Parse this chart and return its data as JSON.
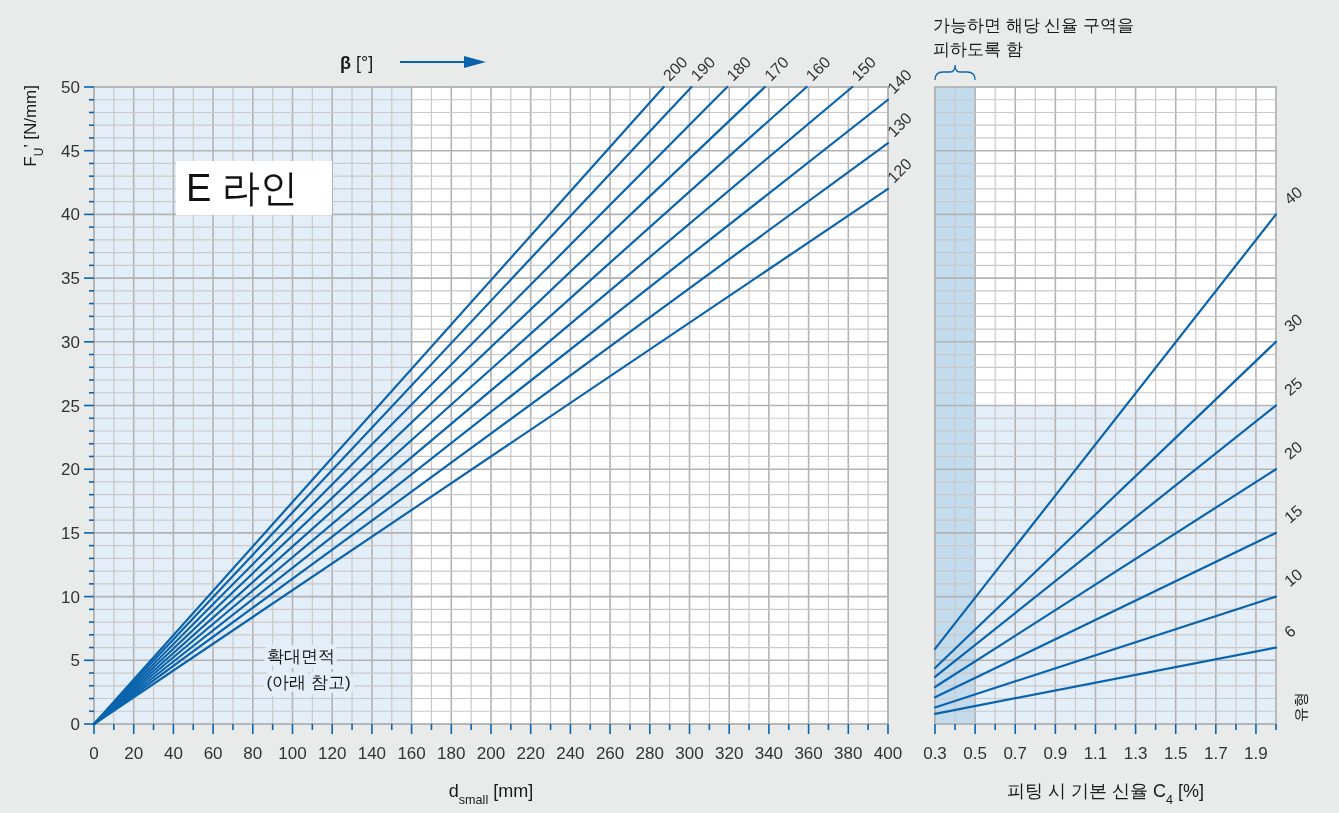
{
  "chart_data": [
    {
      "type": "line",
      "title": "E 라인",
      "xlabel": "d$_{small}$ [mm]",
      "ylabel": "F$_{U}$’ [N/mm]",
      "legend_title": "**β** [°]",
      "series": [
        {
          "name": "200",
          "color": "#0a64ad",
          "x": [
            0,
            287
          ],
          "values": [
            0,
            50
          ]
        },
        {
          "name": "190",
          "color": "#0a64ad",
          "x": [
            0,
            301
          ],
          "values": [
            0,
            50
          ]
        },
        {
          "name": "180",
          "color": "#0a64ad",
          "x": [
            0,
            319
          ],
          "values": [
            0,
            50
          ]
        },
        {
          "name": "170",
          "color": "#0a64ad",
          "x": [
            0,
            338
          ],
          "values": [
            0,
            50
          ]
        },
        {
          "name": "160",
          "color": "#0a64ad",
          "x": [
            0,
            359
          ],
          "values": [
            0,
            50
          ]
        },
        {
          "name": "150",
          "color": "#0a64ad",
          "x": [
            0,
            382
          ],
          "values": [
            0,
            50
          ]
        },
        {
          "name": "140",
          "color": "#0a64ad",
          "x": [
            0,
            400
          ],
          "values": [
            0,
            49
          ]
        },
        {
          "name": "130",
          "color": "#0a64ad",
          "x": [
            0,
            400
          ],
          "values": [
            0,
            45.6
          ]
        },
        {
          "name": "120",
          "color": "#0a64ad",
          "x": [
            0,
            400
          ],
          "values": [
            0,
            42
          ]
        }
      ],
      "xlim": [
        0,
        400
      ],
      "xticks": [
        0,
        {
          "value": 10,
          "label": null
        },
        20,
        {
          "value": 30,
          "label": null
        },
        40,
        {
          "value": 50,
          "label": null
        },
        60,
        {
          "value": 70,
          "label": null
        },
        80,
        {
          "value": 90,
          "label": null
        },
        100,
        {
          "value": 110,
          "label": null
        },
        120,
        {
          "value": 130,
          "label": null
        },
        140,
        {
          "value": 150,
          "label": null
        },
        160,
        {
          "value": 170,
          "label": null
        },
        180,
        {
          "value": 190,
          "label": null
        },
        200,
        {
          "value": 210,
          "label": null
        },
        220,
        {
          "value": 230,
          "label": null
        },
        240,
        {
          "value": 250,
          "label": null
        },
        260,
        {
          "value": 270,
          "label": null
        },
        280,
        {
          "value": 290,
          "label": null
        },
        300,
        {
          "value": 310,
          "label": null
        },
        320,
        {
          "value": 330,
          "label": null
        },
        340,
        {
          "value": 350,
          "label": null
        },
        360,
        {
          "value": 370,
          "label": null
        },
        380,
        {
          "value": 390,
          "label": null
        },
        400
      ],
      "ylim": [
        0,
        50
      ],
      "yticks": [
        0,
        {
          "value": 1,
          "label": null
        },
        {
          "value": 2,
          "label": null
        },
        {
          "value": 3,
          "label": null
        },
        {
          "value": 4,
          "label": null
        },
        5,
        {
          "value": 6,
          "label": null
        },
        {
          "value": 7,
          "label": null
        },
        {
          "value": 8,
          "label": null
        },
        {
          "value": 9,
          "label": null
        },
        10,
        {
          "value": 11,
          "label": null
        },
        {
          "value": 12,
          "label": null
        },
        {
          "value": 13,
          "label": null
        },
        {
          "value": 14,
          "label": null
        },
        15,
        {
          "value": 16,
          "label": null
        },
        {
          "value": 17,
          "label": null
        },
        {
          "value": 18,
          "label": null
        },
        {
          "value": 19,
          "label": null
        },
        20,
        {
          "value": 21,
          "label": null
        },
        {
          "value": 22,
          "label": null
        },
        {
          "value": 23,
          "label": null
        },
        {
          "value": 24,
          "label": null
        },
        25,
        {
          "value": 26,
          "label": null
        },
        {
          "value": 27,
          "label": null
        },
        {
          "value": 28,
          "label": null
        },
        {
          "value": 29,
          "label": null
        },
        30,
        {
          "value": 31,
          "label": null
        },
        {
          "value": 32,
          "label": null
        },
        {
          "value": 33,
          "label": null
        },
        {
          "value": 34,
          "label": null
        },
        35,
        {
          "value": 36,
          "label": null
        },
        {
          "value": 37,
          "label": null
        },
        {
          "value": 38,
          "label": null
        },
        {
          "value": 39,
          "label": null
        },
        40,
        {
          "value": 41,
          "label": null
        },
        {
          "value": 42,
          "label": null
        },
        {
          "value": 43,
          "label": null
        },
        {
          "value": 44,
          "label": null
        },
        45,
        {
          "value": 46,
          "label": null
        },
        {
          "value": 47,
          "label": null
        },
        {
          "value": 48,
          "label": null
        },
        {
          "value": 49,
          "label": null
        },
        50
      ],
      "grid": true,
      "bands": [
        {
          "axis": "x",
          "from": 0,
          "to": 160,
          "label": "확대면적\n(아래 참고)",
          "color": "#e4eef8"
        }
      ]
    },
    {
      "type": "line",
      "xlabel": "피팅 시 기본 신율 C$_{4}$ [%]",
      "legend_title": "유형",
      "x": [
        0.3,
        2.0
      ],
      "series": [
        {
          "name": "40",
          "color": "#0a64ad",
          "values": [
            5.9,
            40
          ]
        },
        {
          "name": "30",
          "color": "#0a64ad",
          "values": [
            4.4,
            30
          ]
        },
        {
          "name": "25",
          "color": "#0a64ad",
          "values": [
            3.7,
            25
          ]
        },
        {
          "name": "20",
          "color": "#0a64ad",
          "values": [
            2.9,
            20
          ]
        },
        {
          "name": "15",
          "color": "#0a64ad",
          "values": [
            2.1,
            15
          ]
        },
        {
          "name": "10",
          "color": "#0a64ad",
          "values": [
            1.3,
            10
          ]
        },
        {
          "name": "6",
          "color": "#0a64ad",
          "values": [
            0.8,
            6
          ]
        }
      ],
      "xlim": [
        0.3,
        2.0
      ],
      "xticks": [
        0.3,
        {
          "value": 0.4,
          "label": null
        },
        0.5,
        {
          "value": 0.6,
          "label": null
        },
        0.7,
        {
          "value": 0.8,
          "label": null
        },
        0.9,
        {
          "value": 1.0,
          "label": null
        },
        1.1,
        {
          "value": 1.2,
          "label": null
        },
        1.3,
        {
          "value": 1.4,
          "label": null
        },
        1.5,
        {
          "value": 1.6,
          "label": null
        },
        1.7,
        {
          "value": 1.8,
          "label": null
        },
        1.9,
        {
          "value": 2.0,
          "label": null
        }
      ],
      "ylim": [
        0,
        50
      ],
      "yticks": [
        0,
        {
          "value": 1,
          "label": null
        },
        {
          "value": 2,
          "label": null
        },
        {
          "value": 3,
          "label": null
        },
        {
          "value": 4,
          "label": null
        },
        5,
        {
          "value": 6,
          "label": null
        },
        {
          "value": 7,
          "label": null
        },
        {
          "value": 8,
          "label": null
        },
        {
          "value": 9,
          "label": null
        },
        10,
        {
          "value": 11,
          "label": null
        },
        {
          "value": 12,
          "label": null
        },
        {
          "value": 13,
          "label": null
        },
        {
          "value": 14,
          "label": null
        },
        15,
        {
          "value": 16,
          "label": null
        },
        {
          "value": 17,
          "label": null
        },
        {
          "value": 18,
          "label": null
        },
        {
          "value": 19,
          "label": null
        },
        20,
        {
          "value": 21,
          "label": null
        },
        {
          "value": 22,
          "label": null
        },
        {
          "value": 23,
          "label": null
        },
        {
          "value": 24,
          "label": null
        },
        25,
        {
          "value": 26,
          "label": null
        },
        {
          "value": 27,
          "label": null
        },
        {
          "value": 28,
          "label": null
        },
        {
          "value": 29,
          "label": null
        },
        30,
        {
          "value": 31,
          "label": null
        },
        {
          "value": 32,
          "label": null
        },
        {
          "value": 33,
          "label": null
        },
        {
          "value": 34,
          "label": null
        },
        35,
        {
          "value": 36,
          "label": null
        },
        {
          "value": 37,
          "label": null
        },
        {
          "value": 38,
          "label": null
        },
        {
          "value": 39,
          "label": null
        },
        40,
        {
          "value": 41,
          "label": null
        },
        {
          "value": 42,
          "label": null
        },
        {
          "value": 43,
          "label": null
        },
        {
          "value": 44,
          "label": null
        },
        45,
        {
          "value": 46,
          "label": null
        },
        {
          "value": 47,
          "label": null
        },
        {
          "value": 48,
          "label": null
        },
        {
          "value": 49,
          "label": null
        },
        50
      ],
      "tick_labels": "x",
      "grid": true,
      "bands": [
        {
          "axis": "y",
          "from": 0,
          "to": 25,
          "color": "#e4eef8"
        },
        {
          "axis": "x",
          "from": 0.3,
          "to": 0.5,
          "label": "가능하면 해당 신율 구역을\n피하도록 함",
          "color": "#c2dbed"
        }
      ]
    }
  ]
}
